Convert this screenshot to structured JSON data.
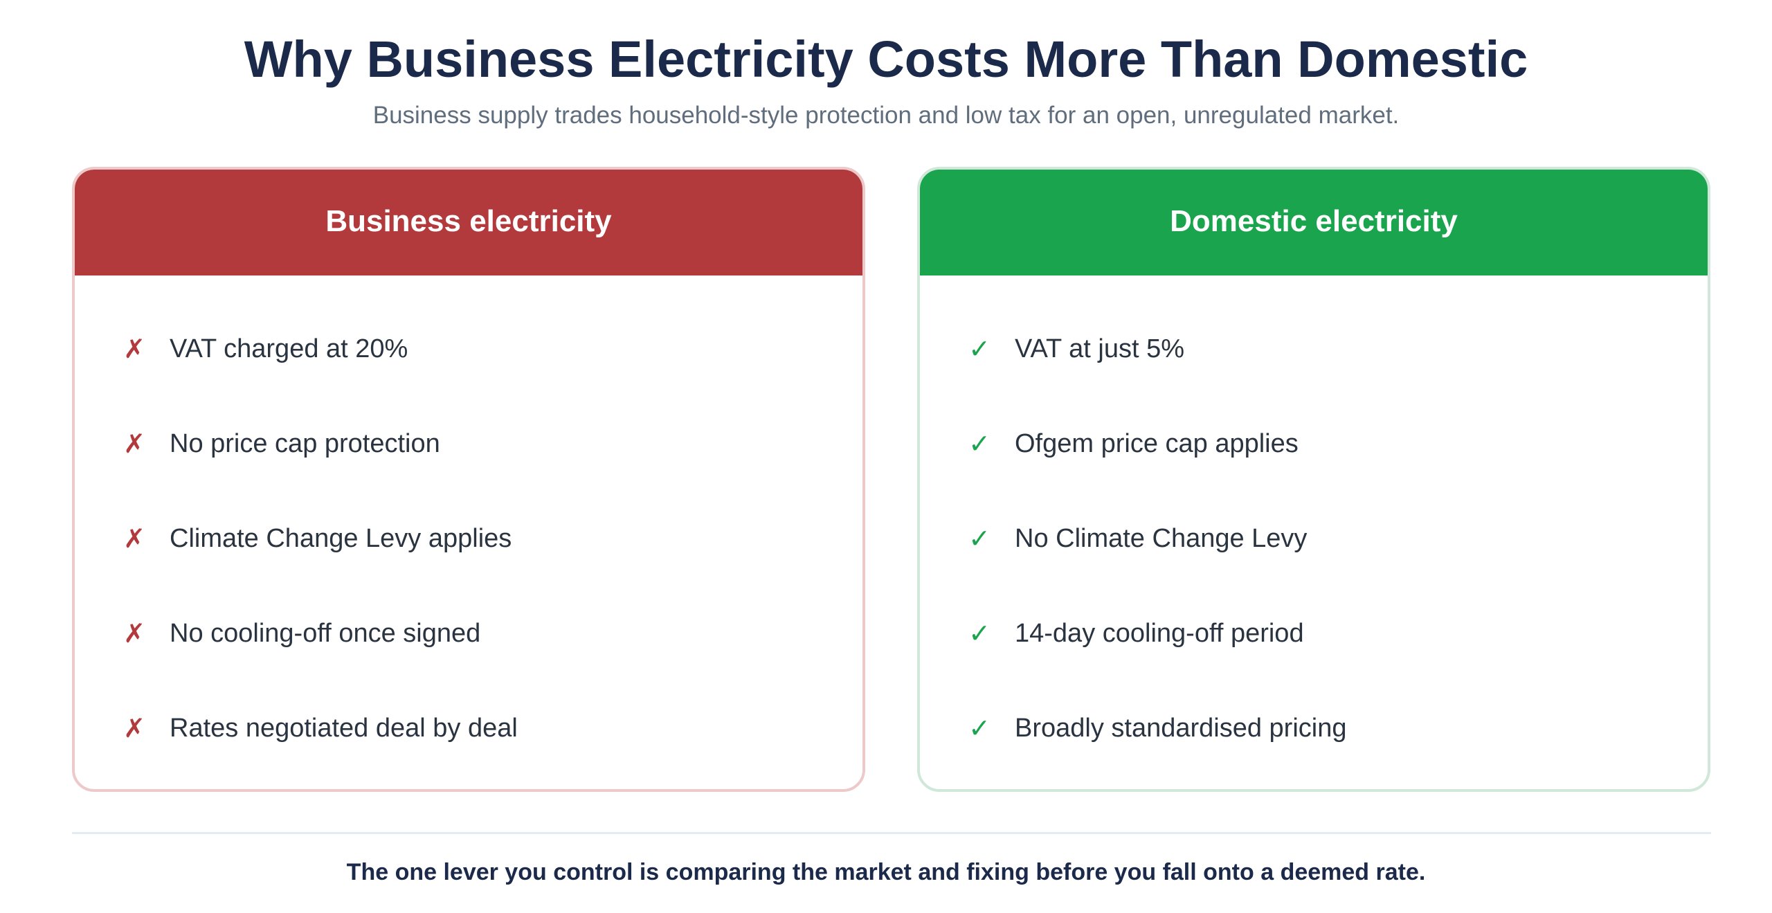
{
  "header": {
    "title": "Why Business Electricity Costs More Than Domestic",
    "subtitle": "Business supply trades household-style protection and low tax for an open, unregulated market."
  },
  "business": {
    "heading": "Business electricity",
    "mark_icon": "cross-icon",
    "mark_glyph": "✗",
    "accent_color": "#b23a3d",
    "items": [
      "VAT charged at 20%",
      "No price cap protection",
      "Climate Change Levy applies",
      "No cooling-off once signed",
      "Rates negotiated deal by deal"
    ]
  },
  "domestic": {
    "heading": "Domestic electricity",
    "mark_icon": "check-icon",
    "mark_glyph": "✓",
    "accent_color": "#19a44d",
    "items": [
      "VAT at just 5%",
      "Ofgem price cap applies",
      "No Climate Change Levy",
      "14-day cooling-off period",
      "Broadly standardised pricing"
    ]
  },
  "footer": {
    "text": "The one lever you control is comparing the market and fixing before you fall onto a deemed rate."
  }
}
